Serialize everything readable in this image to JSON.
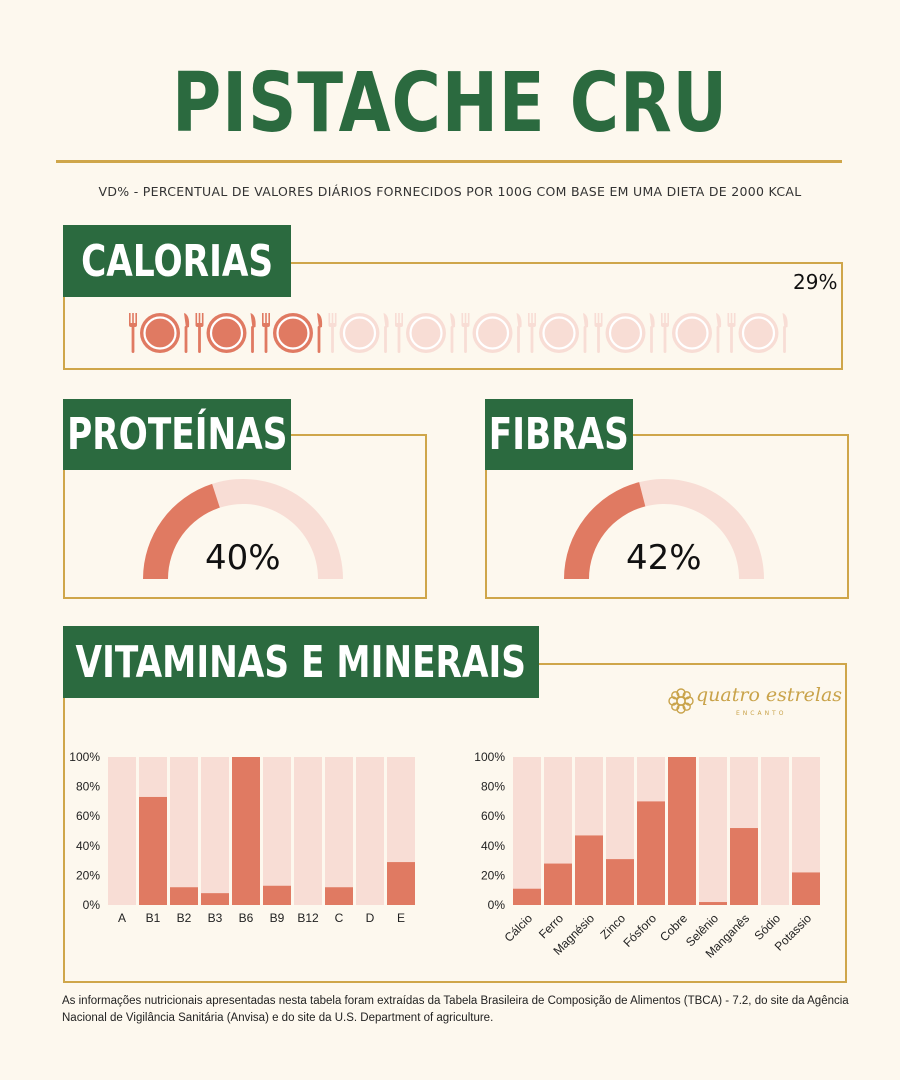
{
  "title": "PISTACHE CRU",
  "subtitle": "VD% - PERCENTUAL DE VALORES DIÁRIOS FORNECIDOS POR 100G COM BASE EM UMA DIETA DE 2000 KCAL",
  "calorias": {
    "label": "CALORIAS",
    "value_label": "29%",
    "value": 29,
    "icon": "plate-fork-knife-icon",
    "icon_count": 10,
    "filled_icons": 3
  },
  "proteinas": {
    "label": "PROTEÍNAS",
    "value_label": "40%",
    "value": 40
  },
  "fibras": {
    "label": "FIBRAS",
    "value_label": "42%",
    "value": 42
  },
  "vitaminas": {
    "label": "VITAMINAS E MINERAIS"
  },
  "logo": {
    "text": "quatro estrelas",
    "subtext": "ENCANTO",
    "icon": "flower-emblem-icon"
  },
  "colors": {
    "green": "#2b6a3f",
    "gold": "#cfa64a",
    "accent": "#e07a62",
    "accent_light": "#f8ddd5",
    "background": "#fdf8ee"
  },
  "chart_data": [
    {
      "type": "bar",
      "categories": [
        "A",
        "B1",
        "B2",
        "B3",
        "B6",
        "B9",
        "B12",
        "C",
        "D",
        "E"
      ],
      "values": [
        0,
        73,
        12,
        8,
        100,
        13,
        0,
        12,
        0,
        29
      ],
      "yticks": [
        "0%",
        "20%",
        "40%",
        "60%",
        "80%",
        "100%"
      ],
      "ylim": [
        0,
        100
      ]
    },
    {
      "type": "bar",
      "categories": [
        "Cálcio",
        "Ferro",
        "Magnésio",
        "Zinco",
        "Fósforo",
        "Cobre",
        "Selênio",
        "Manganês",
        "Sódio",
        "Potassio"
      ],
      "values": [
        11,
        28,
        47,
        31,
        70,
        100,
        2,
        52,
        0,
        22
      ],
      "yticks": [
        "0%",
        "20%",
        "40%",
        "60%",
        "80%",
        "100%"
      ],
      "ylim": [
        0,
        100
      ]
    }
  ],
  "footer": "As informações nutricionais apresentadas nesta tabela foram extraídas da Tabela Brasileira de Composição de Alimentos (TBCA) - 7.2, do site da Agência Nacional de Vigilância Sanitária (Anvisa) e do site da U.S. Department of agriculture."
}
